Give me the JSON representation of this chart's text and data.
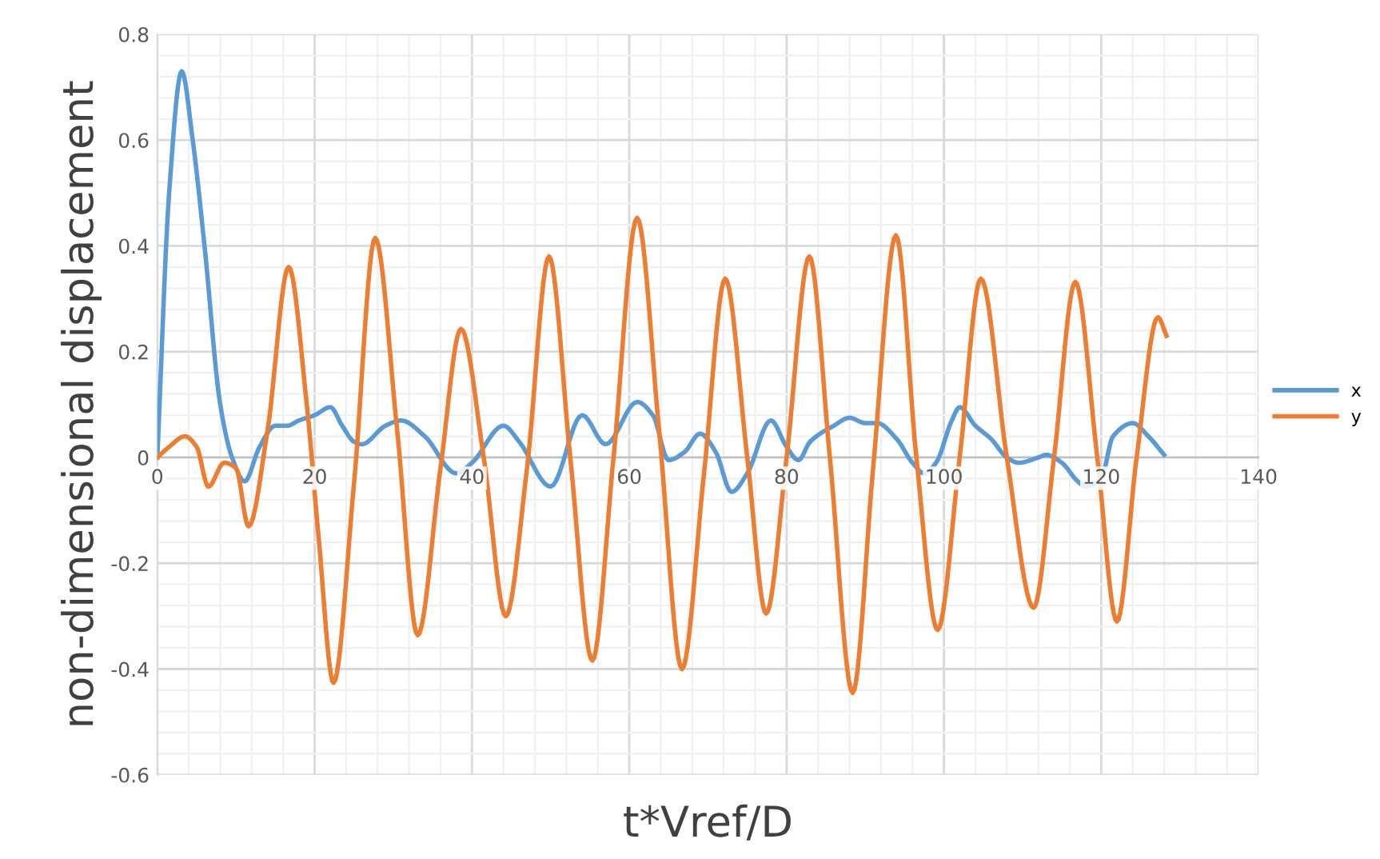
{
  "chart_data": {
    "type": "line",
    "xlabel": "t*Vref/D",
    "ylabel": "non-dimensional displacement",
    "xlim": [
      0,
      140
    ],
    "xticks": [
      0,
      20,
      40,
      60,
      80,
      100,
      120,
      140
    ],
    "ylim": [
      -0.6,
      0.8
    ],
    "yticks": [
      -0.6,
      -0.4,
      -0.2,
      0,
      0.2,
      0.4,
      0.6,
      0.8
    ],
    "grid": true,
    "legend": "right",
    "line_style": "solid",
    "marker": "none",
    "series": [
      {
        "name": "x",
        "color": "#5b9bd5",
        "x": [
          0,
          1.5,
          3.1,
          4.5,
          6,
          8,
          9.5,
          11.1,
          13,
          15,
          16.5,
          18,
          20,
          22,
          23.5,
          25,
          26,
          29,
          31,
          34,
          38,
          40,
          44,
          46,
          50,
          54,
          57,
          61,
          63,
          65,
          67,
          69,
          71,
          73,
          75,
          78,
          80,
          81.5,
          83,
          86,
          88,
          90,
          91.5,
          94,
          96,
          97.5,
          99,
          101,
          102,
          104,
          106,
          108,
          109.5,
          112,
          113,
          115,
          117,
          118,
          120,
          121.5,
          124,
          126,
          128
        ],
        "values": [
          0,
          0.5,
          0.73,
          0.6,
          0.4,
          0.1,
          0.0,
          -0.045,
          0.02,
          0.06,
          0.06,
          0.07,
          0.08,
          0.095,
          0.06,
          0.03,
          0.025,
          0.06,
          0.07,
          0.04,
          -0.03,
          -0.01,
          0.06,
          0.03,
          -0.055,
          0.08,
          0.025,
          0.105,
          0.08,
          -0.005,
          0.01,
          0.045,
          0.01,
          -0.065,
          -0.03,
          0.07,
          0.02,
          -0.005,
          0.03,
          0.06,
          0.075,
          0.065,
          0.065,
          0.035,
          -0.01,
          -0.03,
          -0.01,
          0.07,
          0.095,
          0.06,
          0.035,
          0.0,
          -0.01,
          0.0,
          0.005,
          -0.01,
          -0.045,
          -0.055,
          -0.04,
          0.04,
          0.065,
          0.04,
          0.005
        ]
      },
      {
        "name": "y",
        "color": "#ed7d31",
        "x": [
          0,
          1.5,
          3.5,
          5,
          6.5,
          8.5,
          10,
          11.6,
          14,
          16.7,
          19,
          20.5,
          22.4,
          25,
          27.7,
          30.5,
          33.1,
          36,
          38.6,
          41.5,
          44.3,
          47,
          49.8,
          52.5,
          55.3,
          58,
          61,
          63.8,
          66.7,
          69.5,
          72.2,
          75,
          77.4,
          80,
          82.9,
          85.5,
          88.4,
          91,
          93.9,
          96.5,
          99.2,
          102,
          104.7,
          108,
          111.4,
          114,
          116.7,
          119.5,
          122,
          124.5,
          127.2,
          128.3
        ],
        "values": [
          0,
          0.02,
          0.04,
          0.02,
          -0.055,
          -0.01,
          -0.02,
          -0.13,
          0.05,
          0.36,
          0.1,
          -0.15,
          -0.426,
          -0.05,
          0.415,
          0.05,
          -0.336,
          -0.02,
          0.243,
          0.0,
          -0.3,
          -0.02,
          0.38,
          0.0,
          -0.384,
          0.0,
          0.453,
          0.05,
          -0.4,
          -0.03,
          0.338,
          0.0,
          -0.295,
          0.0,
          0.38,
          0.0,
          -0.445,
          -0.02,
          0.42,
          0.0,
          -0.326,
          0.0,
          0.338,
          0.0,
          -0.284,
          0.0,
          0.332,
          0.0,
          -0.31,
          0.0,
          0.265,
          0.23
        ]
      }
    ]
  }
}
